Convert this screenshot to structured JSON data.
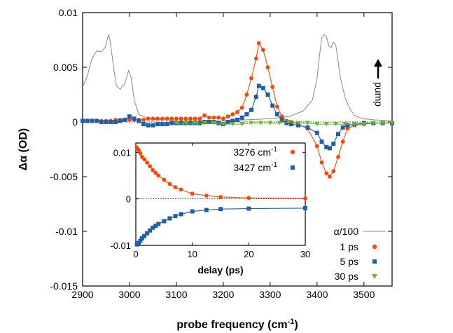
{
  "chart_data": [
    {
      "type": "line",
      "xlabel": "probe frequency (cm",
      "xlabel_sup": "-1",
      "xlabel_close": ")",
      "ylabel": "Δα (OD)",
      "xlim": [
        2900,
        3560
      ],
      "ylim": [
        -0.015,
        0.01
      ],
      "xticks": [
        "2900",
        "3000",
        "3100",
        "3200",
        "3300",
        "3400",
        "3500"
      ],
      "xtick_values": [
        2900,
        3000,
        3100,
        3200,
        3300,
        3400,
        3500
      ],
      "yticks": [
        "0.01",
        "0.005",
        "0",
        "-0.005",
        "-0.01",
        "-0.015"
      ],
      "ytick_values": [
        0.01,
        0.005,
        0,
        -0.005,
        -0.01,
        -0.015
      ],
      "annotation": "pump",
      "legend_position": "bottom-right",
      "series": [
        {
          "name": "α/100",
          "color": "#888888",
          "style": "line",
          "x": [
            2900,
            2910,
            2920,
            2930,
            2940,
            2948,
            2952,
            2956,
            2960,
            2966,
            2972,
            2980,
            2990,
            2998,
            3004,
            3010,
            3020,
            3030,
            3040,
            3060,
            3080,
            3100,
            3150,
            3200,
            3250,
            3300,
            3340,
            3370,
            3390,
            3400,
            3405,
            3410,
            3415,
            3420,
            3425,
            3430,
            3435,
            3440,
            3445,
            3450,
            3460,
            3470,
            3480,
            3490,
            3500,
            3520,
            3560
          ],
          "y": [
            0.0032,
            0.0042,
            0.0058,
            0.0065,
            0.0064,
            0.0068,
            0.0075,
            0.008,
            0.007,
            0.005,
            0.0033,
            0.003,
            0.0035,
            0.0047,
            0.004,
            0.002,
            0.0007,
            0.0005,
            0.0003,
            0.0002,
            0.0002,
            0.0001,
            0.0001,
            0.0001,
            0.0002,
            0.0003,
            0.0005,
            0.001,
            0.002,
            0.004,
            0.006,
            0.0077,
            0.008,
            0.0078,
            0.007,
            0.0068,
            0.0073,
            0.007,
            0.0055,
            0.004,
            0.0022,
            0.0012,
            0.0006,
            0.0004,
            0.0003,
            0.0002,
            0.0001
          ]
        },
        {
          "name": "1 ps",
          "color": "#ff4500",
          "style": "circle",
          "x": [
            2900,
            2910,
            2920,
            2930,
            2940,
            2950,
            2960,
            2970,
            2980,
            2990,
            3000,
            3010,
            3020,
            3030,
            3040,
            3050,
            3060,
            3070,
            3080,
            3090,
            3100,
            3110,
            3120,
            3130,
            3140,
            3150,
            3160,
            3170,
            3180,
            3190,
            3200,
            3210,
            3220,
            3230,
            3240,
            3250,
            3260,
            3270,
            3276,
            3285,
            3295,
            3305,
            3315,
            3325,
            3335,
            3345,
            3360,
            3380,
            3400,
            3410,
            3420,
            3427,
            3435,
            3445,
            3455,
            3465,
            3480,
            3500,
            3520,
            3540,
            3560
          ],
          "y": [
            0.0001,
            0.0001,
            0.0001,
            0.0001,
            0.0001,
            0.0001,
            0.0001,
            0.0002,
            0.0002,
            0.0002,
            0.0002,
            0.0002,
            0.0002,
            0.0002,
            0.0003,
            0.0003,
            0.0003,
            0.0003,
            0.0003,
            0.0003,
            0.0003,
            0.0003,
            0.0003,
            0.0003,
            0.0003,
            0.0003,
            0.0006,
            0.0004,
            0.0004,
            0.0004,
            0.0003,
            0.0005,
            0.0007,
            0.0009,
            0.0013,
            0.0025,
            0.004,
            0.0058,
            0.0072,
            0.0066,
            0.005,
            0.0032,
            0.0014,
            0.0005,
            0.0001,
            0.0,
            -0.0002,
            -0.0006,
            -0.0022,
            -0.0037,
            -0.0047,
            -0.005,
            -0.0045,
            -0.0032,
            -0.0018,
            -0.0006,
            -0.0003,
            -0.0002,
            -0.0001,
            -0.0001,
            -0.0001
          ]
        },
        {
          "name": "5 ps",
          "color": "#1f5fa8",
          "style": "square",
          "x": [
            2900,
            2910,
            2920,
            2930,
            2940,
            2950,
            2960,
            2970,
            2980,
            2990,
            3000,
            3010,
            3020,
            3030,
            3040,
            3050,
            3060,
            3070,
            3080,
            3090,
            3100,
            3110,
            3120,
            3130,
            3140,
            3150,
            3160,
            3170,
            3180,
            3190,
            3200,
            3210,
            3220,
            3230,
            3240,
            3250,
            3260,
            3270,
            3276,
            3285,
            3295,
            3305,
            3315,
            3325,
            3335,
            3345,
            3360,
            3380,
            3400,
            3410,
            3420,
            3427,
            3435,
            3445,
            3455,
            3465,
            3480,
            3500,
            3520,
            3540,
            3560
          ],
          "y": [
            0.0001,
            0.0001,
            0.0001,
            0.0001,
            0.0,
            0.0,
            0.0,
            0.0,
            0.0001,
            0.0002,
            0.0005,
            0.0003,
            0.0001,
            -0.0002,
            -0.0003,
            -0.0003,
            -0.0002,
            -0.0002,
            -0.0002,
            -0.0001,
            -0.0001,
            -0.0001,
            -0.0001,
            -0.0001,
            -0.0001,
            -0.0001,
            0.0,
            0.0,
            0.0,
            -0.0001,
            -0.0002,
            0.0,
            0.0001,
            0.0002,
            0.0004,
            0.0007,
            0.0011,
            0.0023,
            0.0033,
            0.0031,
            0.0025,
            0.0015,
            0.0007,
            0.0002,
            -0.0001,
            -0.0002,
            -0.0003,
            -0.0005,
            -0.001,
            -0.0018,
            -0.0023,
            -0.0024,
            -0.002,
            -0.0011,
            -0.0005,
            -0.0003,
            -0.0002,
            -0.0001,
            -0.0001,
            -0.0001,
            -0.0001
          ]
        },
        {
          "name": "30 ps",
          "color": "#66bb22",
          "style": "triangle",
          "x": [
            3100,
            3120,
            3140,
            3160,
            3180,
            3200,
            3220,
            3240,
            3260,
            3280,
            3300,
            3320,
            3340,
            3360,
            3380,
            3400,
            3420,
            3440,
            3460,
            3480,
            3500,
            3520,
            3540,
            3560
          ],
          "y": [
            -0.0001,
            -0.0001,
            -0.0001,
            -0.0001,
            -0.0001,
            -0.0002,
            -0.0002,
            -0.0002,
            -0.0001,
            -0.0001,
            -0.0001,
            -0.0001,
            0.0,
            -0.0001,
            -0.0001,
            -0.0002,
            -0.0002,
            -0.0002,
            -0.0002,
            -0.0002,
            -0.0002,
            -0.0001,
            -0.0001,
            -0.0001
          ]
        }
      ]
    },
    {
      "type": "scatter",
      "xlabel": "delay (ps)",
      "xlim": [
        0,
        30
      ],
      "ylim": [
        -0.01,
        0.012
      ],
      "xticks": [
        "0",
        "10",
        "20",
        "30"
      ],
      "xtick_values": [
        0,
        10,
        20,
        30
      ],
      "yticks": [
        "0.01",
        "0",
        "-0.01"
      ],
      "ytick_values": [
        0.01,
        0,
        -0.01
      ],
      "legend_position": "top-right",
      "series": [
        {
          "name": "3276 cm",
          "name_sup": "-1",
          "color": "#ff4500",
          "style": "circle",
          "x": [
            0.2,
            0.5,
            0.8,
            1.1,
            1.5,
            2.0,
            2.5,
            3.0,
            3.5,
            4.0,
            5.0,
            6.0,
            7.0,
            8.0,
            10,
            12.5,
            15,
            20,
            30
          ],
          "y": [
            0.011,
            0.0105,
            0.0098,
            0.009,
            0.0085,
            0.0078,
            0.007,
            0.0062,
            0.0056,
            0.005,
            0.0041,
            0.0032,
            0.0025,
            0.002,
            0.0011,
            0.0007,
            0.0004,
            0.0002,
            0.0001
          ]
        },
        {
          "name": "3427 cm",
          "name_sup": "-1",
          "color": "#1f5fa8",
          "style": "square",
          "x": [
            0.2,
            0.5,
            0.8,
            1.1,
            1.5,
            2.0,
            2.5,
            3.0,
            3.5,
            4.0,
            5.0,
            6.0,
            7.0,
            8.0,
            10,
            12.5,
            15,
            20,
            30
          ],
          "y": [
            -0.0098,
            -0.0095,
            -0.009,
            -0.0085,
            -0.008,
            -0.0074,
            -0.0068,
            -0.0062,
            -0.0058,
            -0.0054,
            -0.0048,
            -0.0042,
            -0.0037,
            -0.0033,
            -0.0027,
            -0.0024,
            -0.0022,
            -0.0021,
            -0.002
          ]
        }
      ]
    }
  ]
}
